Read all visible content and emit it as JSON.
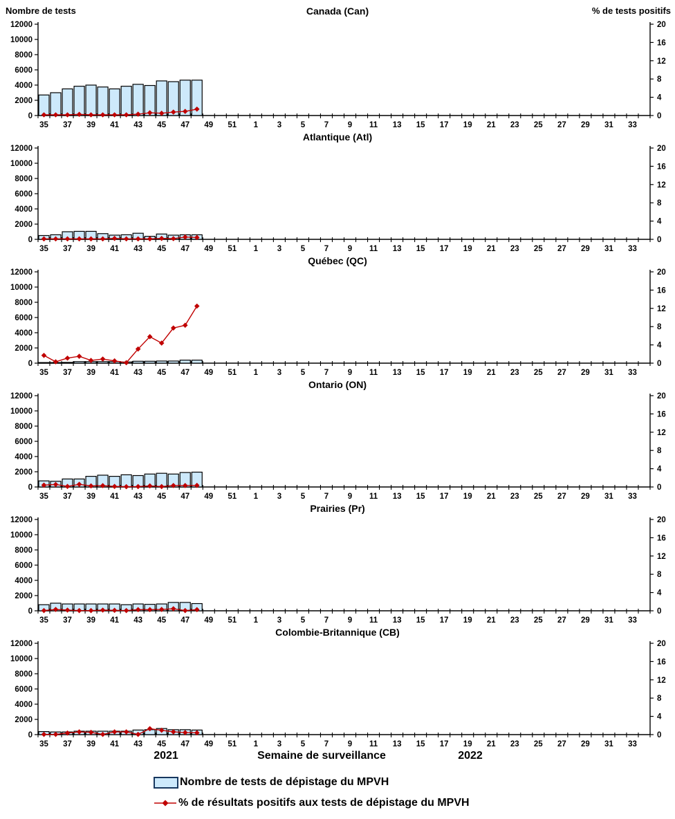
{
  "header": {
    "left_axis_title": "Nombre de tests",
    "right_axis_title": "% de tests positifs"
  },
  "footer": {
    "year_left": "2021",
    "xaxis_label": "Semaine de surveillance",
    "year_right": "2022"
  },
  "legend": {
    "items": [
      {
        "type": "bar",
        "label": "Nombre de tests de dépistage du MPVH"
      },
      {
        "type": "line",
        "label": "% de résultats positifs aux tests de dépistage du MPVH"
      }
    ]
  },
  "colors": {
    "bar_fill": "#CDE9FB",
    "bar_border": "#000000",
    "line": "#C00000"
  },
  "chart_data": {
    "type": "bar+line",
    "x_categories": [
      35,
      36,
      37,
      38,
      39,
      40,
      41,
      42,
      43,
      44,
      45,
      46,
      47,
      48,
      49,
      50,
      51,
      52,
      1,
      2,
      3,
      4,
      5,
      6,
      7,
      8,
      9,
      10,
      11,
      12,
      13,
      14,
      15,
      16,
      17,
      18,
      19,
      20,
      21,
      22,
      23,
      24,
      25,
      26,
      27,
      28,
      29,
      30,
      31,
      32,
      33,
      34
    ],
    "x_tick_labels": [
      35,
      37,
      39,
      41,
      43,
      45,
      47,
      49,
      51,
      1,
      3,
      5,
      7,
      9,
      11,
      13,
      15,
      17,
      19,
      21,
      23,
      25,
      27,
      29,
      31,
      33
    ],
    "data_weeks": [
      35,
      36,
      37,
      38,
      39,
      40,
      41,
      42,
      43,
      44,
      45,
      46,
      47,
      48
    ],
    "left_axis": {
      "ticks": [
        0,
        2000,
        4000,
        6000,
        8000,
        10000,
        12000
      ],
      "ylim": [
        0,
        12000
      ]
    },
    "right_axis": {
      "ticks": [
        0,
        4,
        8,
        12,
        16,
        20
      ],
      "ylim": [
        0,
        20
      ]
    },
    "panels": [
      {
        "title": "Canada (Can)",
        "series": [
          {
            "name": "Nombre de tests",
            "type": "bar",
            "axis": "left",
            "values": [
              2700,
              3000,
              3500,
              3850,
              4000,
              3750,
              3500,
              3850,
              4100,
              3950,
              4550,
              4450,
              4650,
              4650
            ]
          },
          {
            "name": "% de tests positifs",
            "type": "line",
            "axis": "right",
            "values": [
              0.15,
              0.15,
              0.15,
              0.25,
              0.15,
              0.15,
              0.15,
              0.15,
              0.3,
              0.6,
              0.5,
              0.75,
              0.9,
              1.4
            ]
          }
        ]
      },
      {
        "title": "Atlantique (Atl)",
        "series": [
          {
            "name": "Nombre de tests",
            "type": "bar",
            "axis": "left",
            "values": [
              500,
              600,
              1000,
              1050,
              1050,
              750,
              550,
              600,
              800,
              400,
              700,
              550,
              600,
              600
            ]
          },
          {
            "name": "% de tests positifs",
            "type": "line",
            "axis": "right",
            "values": [
              0.1,
              0.1,
              0.1,
              0.1,
              0.1,
              0.1,
              0.2,
              0.1,
              0.1,
              0.1,
              0.2,
              0.15,
              0.5,
              0.4
            ]
          }
        ]
      },
      {
        "title": "Québec (QC)",
        "series": [
          {
            "name": "Nombre de tests",
            "type": "bar",
            "axis": "left",
            "values": [
              80,
              80,
              100,
              200,
              200,
              200,
              200,
              150,
              250,
              250,
              280,
              280,
              400,
              400
            ]
          },
          {
            "name": "% de tests positifs",
            "type": "line",
            "axis": "right",
            "values": [
              1.7,
              0.3,
              1.1,
              1.5,
              0.6,
              0.9,
              0.5,
              0.1,
              3.1,
              5.8,
              4.4,
              7.7,
              8.3,
              12.5
            ]
          }
        ]
      },
      {
        "title": "Ontario (ON)",
        "series": [
          {
            "name": "Nombre de tests",
            "type": "bar",
            "axis": "left",
            "values": [
              800,
              750,
              1050,
              1050,
              1400,
              1550,
              1400,
              1600,
              1500,
              1700,
              1800,
              1700,
              1900,
              1950
            ]
          },
          {
            "name": "% de tests positifs",
            "type": "line",
            "axis": "right",
            "values": [
              0.4,
              0.55,
              0.12,
              0.58,
              0.23,
              0.29,
              0.12,
              0.06,
              0.09,
              0.23,
              0.09,
              0.32,
              0.32,
              0.35
            ]
          }
        ]
      },
      {
        "title": "Prairies (Pr)",
        "series": [
          {
            "name": "Nombre de tests",
            "type": "bar",
            "axis": "left",
            "values": [
              800,
              1000,
              900,
              900,
              900,
              900,
              900,
              800,
              900,
              850,
              900,
              1100,
              1100,
              950
            ]
          },
          {
            "name": "% de tests positifs",
            "type": "line",
            "axis": "right",
            "values": [
              0.05,
              0.3,
              0.15,
              0.05,
              0.05,
              0.15,
              0.1,
              0.05,
              0.25,
              0.25,
              0.3,
              0.45,
              0.05,
              0.25
            ]
          }
        ]
      },
      {
        "title": "Colombie-Britannique (CB)",
        "series": [
          {
            "name": "Nombre de tests",
            "type": "bar",
            "axis": "left",
            "values": [
              400,
              350,
              350,
              450,
              450,
              450,
              450,
              450,
              600,
              650,
              800,
              650,
              650,
              600
            ]
          },
          {
            "name": "% de tests positifs",
            "type": "line",
            "axis": "right",
            "values": [
              0.05,
              0.05,
              0.35,
              0.6,
              0.5,
              0.05,
              0.6,
              0.6,
              0.05,
              1.3,
              0.95,
              0.6,
              0.45,
              0.4
            ]
          }
        ]
      }
    ]
  }
}
